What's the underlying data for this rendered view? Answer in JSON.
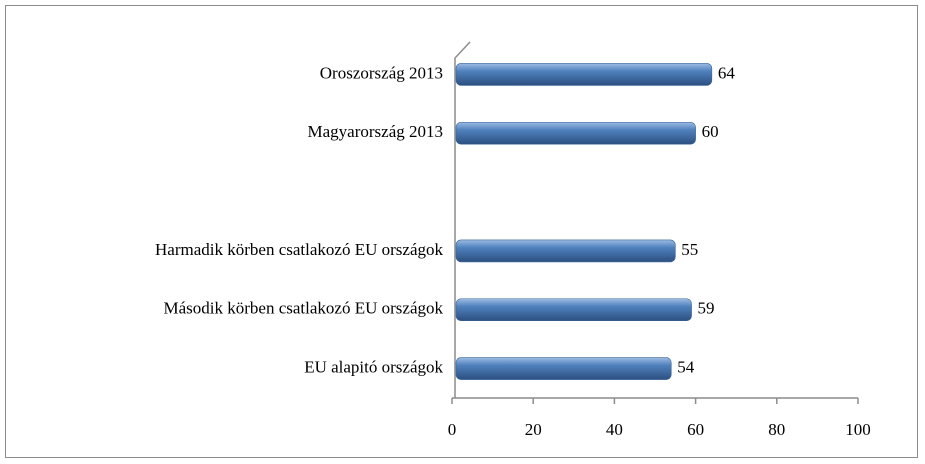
{
  "chart_data": {
    "type": "bar",
    "orientation": "horizontal",
    "categories": [
      "Oroszország 2013",
      "Magyarország 2013",
      null,
      "Harmadik körben csatlakozó EU országok",
      "Második körben csatlakozó EU országok",
      "EU alapitó országok"
    ],
    "values": [
      64,
      60,
      null,
      55,
      59,
      54
    ],
    "color": "#4a7ebb",
    "xlim": [
      0,
      100
    ],
    "xticks": [
      0,
      20,
      40,
      60,
      80,
      100
    ],
    "grid": false
  }
}
